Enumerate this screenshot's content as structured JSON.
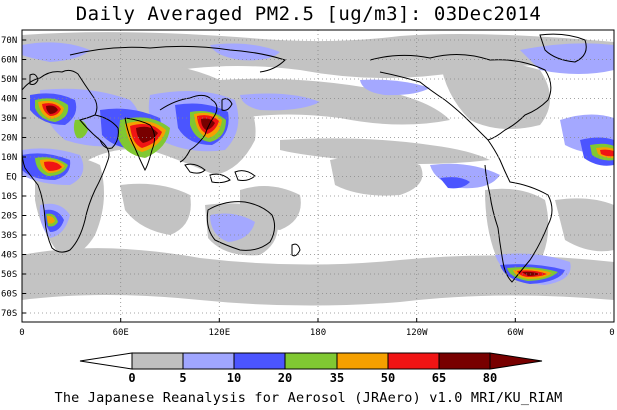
{
  "title": "Daily Averaged PM2.5 [ug/m3]: 03Dec2014",
  "footer": "The Japanese Reanalysis for Aerosol (JRAero) v1.0 MRI/KU_RIAM",
  "map": {
    "projection": "equirectangular",
    "lon_range": [
      0,
      360
    ],
    "lat_range": [
      -75,
      75
    ],
    "lat_ticks": [
      "70N",
      "60N",
      "50N",
      "40N",
      "30N",
      "20N",
      "10N",
      "EQ",
      "10S",
      "20S",
      "30S",
      "40S",
      "50S",
      "60S",
      "70S"
    ],
    "lon_ticks": [
      "0",
      "60E",
      "120E",
      "180",
      "120W",
      "60W",
      "0"
    ],
    "grid": "dotted"
  },
  "colorbar": {
    "levels": [
      "0",
      "5",
      "10",
      "20",
      "35",
      "50",
      "65",
      "80"
    ],
    "colors": [
      "#ffffff",
      "#c0c0c0",
      "#a0a6ff",
      "#4b55ff",
      "#80c832",
      "#f5a000",
      "#f01414",
      "#780000"
    ]
  }
}
